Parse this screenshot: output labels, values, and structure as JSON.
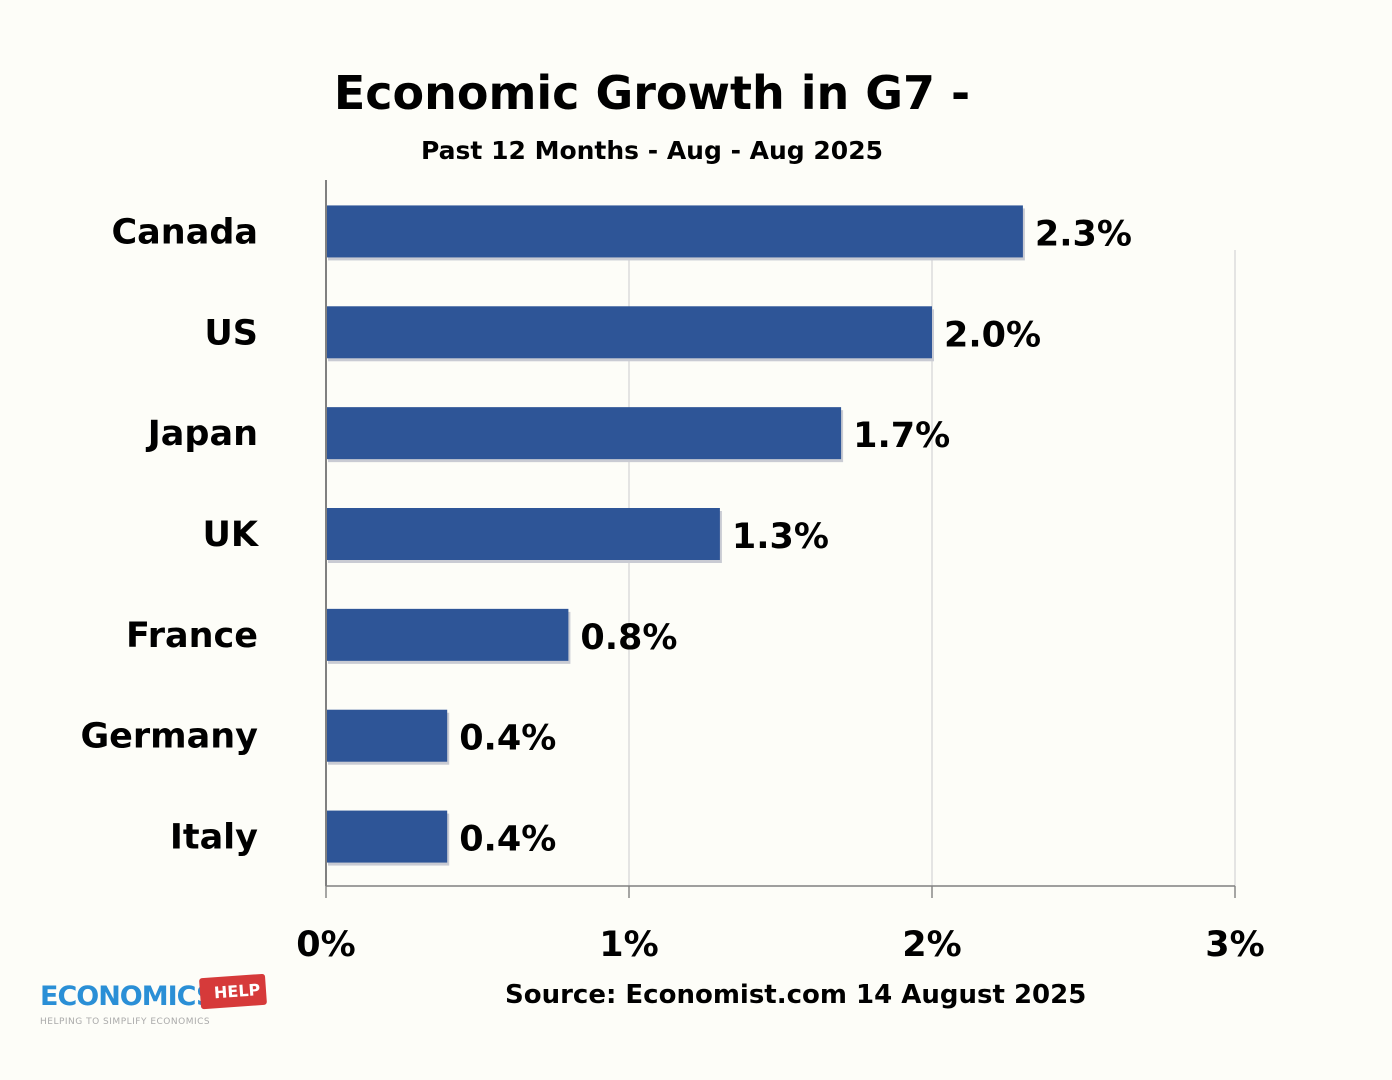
{
  "chart_data": {
    "type": "bar",
    "orientation": "horizontal",
    "title": "Economic Growth in G7 -",
    "subtitle": "Past 12 Months - Aug - Aug 2025",
    "categories": [
      "Canada",
      "US",
      "Japan",
      "UK",
      "France",
      "Germany",
      "Italy"
    ],
    "values": [
      2.3,
      2.0,
      1.7,
      1.3,
      0.8,
      0.4,
      0.4
    ],
    "data_labels": [
      "2.3%",
      "2.0%",
      "1.7%",
      "1.3%",
      "0.8%",
      "0.4%",
      "0.4%"
    ],
    "xlim": [
      0,
      3
    ],
    "x_ticks": [
      0,
      1,
      2,
      3
    ],
    "x_tick_labels": [
      "0%",
      "1%",
      "2%",
      "3%"
    ],
    "xlabel": "",
    "ylabel": "",
    "grid": "vertical",
    "bar_color": "#2e5597",
    "source": "Source: Economist.com 14 August 2025"
  },
  "logo": {
    "text": "ECONOMICS",
    "badge": "HELP",
    "tagline": "HELPING TO SIMPLIFY ECONOMICS"
  }
}
